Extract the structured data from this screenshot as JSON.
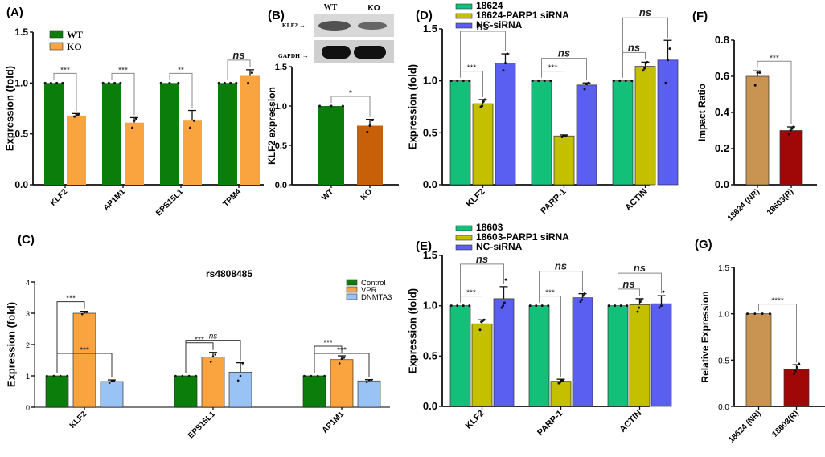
{
  "chart_data": [
    {
      "id": "A",
      "panel_label": "(A)",
      "type": "bar",
      "title": "",
      "xlabel": "",
      "ylabel": "Expression (fold)",
      "ylim": [
        0,
        1.5
      ],
      "yticks": [
        "0.0",
        "0.5",
        "1.0",
        "1.5"
      ],
      "ytick_values": [
        0,
        0.5,
        1.0,
        1.5
      ],
      "categories": [
        "KLF2",
        "AP1M1",
        "EPS15L1",
        "TPM4"
      ],
      "legend": "top-left",
      "series": [
        {
          "name": "WT",
          "color": "#0a7d0a",
          "values": [
            1.0,
            1.0,
            1.0,
            1.0
          ],
          "errors": [
            0,
            0,
            0,
            0
          ],
          "points": [
            [
              1,
              1,
              1,
              1
            ],
            [
              1,
              1,
              1,
              1
            ],
            [
              1,
              1,
              1
            ],
            [
              1,
              1,
              1,
              1
            ]
          ]
        },
        {
          "name": "KO",
          "color": "#f9a43f",
          "values": [
            0.68,
            0.61,
            0.63,
            1.07
          ],
          "errors": [
            0.02,
            0.05,
            0.1,
            0.06
          ],
          "points": [
            [
              0.67,
              0.69,
              0.69
            ],
            [
              0.56,
              0.63,
              0.65
            ],
            [
              0.56,
              0.63
            ],
            [
              1.0,
              1.1
            ]
          ]
        }
      ],
      "significance": [
        {
          "category": 0,
          "from": 0,
          "to": 1,
          "label": "***"
        },
        {
          "category": 1,
          "from": 0,
          "to": 1,
          "label": "***"
        },
        {
          "category": 2,
          "from": 0,
          "to": 1,
          "label": "**"
        },
        {
          "category": 3,
          "from": 0,
          "to": 1,
          "label": "ns"
        }
      ]
    },
    {
      "id": "B",
      "panel_label": "(B)",
      "type": "bar",
      "title": "",
      "xlabel": "",
      "ylabel": "KLF2 expression",
      "ylim": [
        0,
        1.5
      ],
      "yticks": [
        "0.0",
        "0.5",
        "1.0",
        "1.5"
      ],
      "ytick_values": [
        0,
        0.5,
        1.0,
        1.5
      ],
      "categories": [
        "WT",
        "KO"
      ],
      "series": [
        {
          "name": "KLF2 expression",
          "colors": [
            "#0a7d0a",
            "#c8600a"
          ],
          "values": [
            1.0,
            0.75
          ],
          "errors": [
            0,
            0.08
          ],
          "points": [
            [
              1,
              1,
              1
            ],
            [
              0.67,
              0.75,
              0.82
            ]
          ]
        }
      ],
      "significance": [
        {
          "from": 0,
          "to": 1,
          "label": "*"
        }
      ],
      "blot": {
        "lane_labels": [
          "WT",
          "KO"
        ],
        "rows": [
          "KLF2",
          "GAPDH"
        ]
      }
    },
    {
      "id": "C",
      "panel_label": "(C)",
      "type": "bar",
      "title": "rs4808485",
      "xlabel": "",
      "ylabel": "Expression (fold)",
      "ylim": [
        0,
        4
      ],
      "yticks": [
        "0",
        "1",
        "2",
        "3",
        "4"
      ],
      "ytick_values": [
        0,
        1,
        2,
        3,
        4
      ],
      "categories": [
        "KLF2",
        "EPS15L1",
        "AP1M1"
      ],
      "legend": "top-right",
      "series": [
        {
          "name": "Control",
          "color": "#0a7d0a",
          "values": [
            1.0,
            1.0,
            1.0
          ],
          "errors": [
            0,
            0,
            0
          ],
          "points": [
            [
              1,
              1,
              1,
              1
            ],
            [
              1,
              1,
              1,
              1
            ],
            [
              1,
              1,
              1,
              1
            ]
          ]
        },
        {
          "name": "VPR",
          "color": "#f9a43f",
          "values": [
            3.0,
            1.6,
            1.52
          ],
          "errors": [
            0.06,
            0.15,
            0.12
          ],
          "points": [
            [
              2.97,
              3.02,
              3.04
            ],
            [
              1.45,
              1.62,
              1.68
            ],
            [
              1.4,
              1.55,
              1.58
            ]
          ]
        },
        {
          "name": "DNMTA3",
          "color": "#99c2f5",
          "values": [
            0.82,
            1.12,
            0.84
          ],
          "errors": [
            0.05,
            0.3,
            0.04
          ],
          "points": [
            [
              0.78,
              0.84,
              0.84
            ],
            [
              0.85,
              1.0,
              1.4
            ],
            [
              0.8,
              0.86,
              0.87
            ]
          ]
        }
      ],
      "significance": [
        {
          "category": 0,
          "from": 0,
          "to": 1,
          "label": "***"
        },
        {
          "category": 0,
          "from": 0,
          "to": 2,
          "label": "***"
        },
        {
          "category": 1,
          "from": 0,
          "to": 1,
          "label": "***"
        },
        {
          "category": 1,
          "from": 0,
          "to": 2,
          "label": "ns"
        },
        {
          "category": 2,
          "from": 0,
          "to": 1,
          "label": "***"
        },
        {
          "category": 2,
          "from": 0,
          "to": 2,
          "label": "***"
        }
      ]
    },
    {
      "id": "D",
      "panel_label": "(D)",
      "type": "bar",
      "title": "",
      "xlabel": "",
      "ylabel": "Expression (fold)",
      "ylim": [
        0,
        1.5
      ],
      "yticks": [
        "0.0",
        "0.5",
        "1.0",
        "1.5"
      ],
      "ytick_values": [
        0,
        0.5,
        1.0,
        1.5
      ],
      "categories": [
        "KLF2",
        "PARP-1",
        "ACTIN"
      ],
      "legend": "top-left",
      "series": [
        {
          "name": "18624",
          "color": "#12c07a",
          "values": [
            1.0,
            1.0,
            1.0
          ],
          "errors": [
            0,
            0,
            0
          ],
          "points": [
            [
              1,
              1,
              1,
              1
            ],
            [
              1,
              1,
              1,
              1
            ],
            [
              1,
              1,
              1,
              1
            ]
          ]
        },
        {
          "name": "18624-PARP1 siRNA",
          "color": "#c4c000",
          "values": [
            0.78,
            0.47,
            1.14
          ],
          "errors": [
            0.04,
            0.01,
            0.04
          ],
          "points": [
            [
              0.75,
              0.76,
              0.8,
              0.82
            ],
            [
              0.46,
              0.47,
              0.47,
              0.47
            ],
            [
              1.1,
              1.12,
              1.17,
              1.18
            ]
          ]
        },
        {
          "name": "NC-siRNA",
          "color": "#5a5ff2",
          "values": [
            1.17,
            0.96,
            1.2
          ],
          "errors": [
            0.09,
            0.02,
            0.19
          ],
          "points": [
            [
              1.1,
              1.17,
              1.26
            ],
            [
              0.92,
              0.97,
              0.98
            ],
            [
              0.98,
              1.2,
              1.31
            ]
          ]
        }
      ],
      "significance": [
        {
          "category": 0,
          "from": 0,
          "to": 1,
          "label": "***"
        },
        {
          "category": 0,
          "from": 0,
          "to": 2,
          "label": "ns"
        },
        {
          "category": 1,
          "from": 0,
          "to": 1,
          "label": "***"
        },
        {
          "category": 1,
          "from": 0,
          "to": 2,
          "label": "ns"
        },
        {
          "category": 2,
          "from": 0,
          "to": 1,
          "label": "ns"
        },
        {
          "category": 2,
          "from": 0,
          "to": 2,
          "label": "ns"
        }
      ]
    },
    {
      "id": "E",
      "panel_label": "(E)",
      "type": "bar",
      "title": "",
      "xlabel": "",
      "ylabel": "Expression (fold)",
      "ylim": [
        0,
        1.5
      ],
      "yticks": [
        "0.0",
        "0.5",
        "1.0",
        "1.5"
      ],
      "ytick_values": [
        0,
        0.5,
        1.0,
        1.5
      ],
      "categories": [
        "KLF2",
        "PARP-1",
        "ACTIN"
      ],
      "legend": "top-left",
      "series": [
        {
          "name": "18603",
          "color": "#12c07a",
          "values": [
            1.0,
            1.0,
            1.0
          ],
          "errors": [
            0,
            0,
            0
          ],
          "points": [
            [
              1,
              1,
              1,
              1
            ],
            [
              1,
              1,
              1,
              1
            ],
            [
              1,
              1,
              1,
              1
            ]
          ]
        },
        {
          "name": "18603-PARP1 siRNA",
          "color": "#c4c000",
          "values": [
            0.82,
            0.25,
            1.01
          ],
          "errors": [
            0.04,
            0.02,
            0.06
          ],
          "points": [
            [
              0.76,
              0.84,
              0.85,
              0.86
            ],
            [
              0.23,
              0.24,
              0.26,
              0.26
            ],
            [
              0.94,
              0.98,
              1.04,
              1.06
            ]
          ]
        },
        {
          "name": "NC-siRNA",
          "color": "#5a5ff2",
          "values": [
            1.07,
            1.08,
            1.02
          ],
          "errors": [
            0.12,
            0.04,
            0.08
          ],
          "points": [
            [
              0.98,
              1.0,
              1.03,
              1.26
            ],
            [
              1.04,
              1.06,
              1.1,
              1.12
            ],
            [
              0.98,
              1.0,
              1.14
            ]
          ]
        }
      ],
      "significance": [
        {
          "category": 0,
          "from": 0,
          "to": 1,
          "label": "***"
        },
        {
          "category": 0,
          "from": 0,
          "to": 2,
          "label": "ns"
        },
        {
          "category": 1,
          "from": 0,
          "to": 1,
          "label": "***"
        },
        {
          "category": 1,
          "from": 0,
          "to": 2,
          "label": "ns"
        },
        {
          "category": 2,
          "from": 0,
          "to": 1,
          "label": "ns"
        },
        {
          "category": 2,
          "from": 0,
          "to": 2,
          "label": "ns"
        }
      ]
    },
    {
      "id": "F",
      "panel_label": "(F)",
      "type": "bar",
      "title": "",
      "xlabel": "",
      "ylabel": "Impact Ratio",
      "ylim": [
        0,
        0.8
      ],
      "yticks": [
        "0.0",
        "0.2",
        "0.4",
        "0.6",
        "0.8"
      ],
      "ytick_values": [
        0,
        0.2,
        0.4,
        0.6,
        0.8
      ],
      "categories": [
        "18624 (NR)",
        "18603(R)"
      ],
      "series": [
        {
          "name": "Impact Ratio",
          "colors": [
            "#c99352",
            "#a00808"
          ],
          "values": [
            0.6,
            0.3
          ],
          "errors": [
            0.03,
            0.02
          ],
          "points": [
            [
              0.55,
              0.62,
              0.62
            ],
            [
              0.28,
              0.3,
              0.31,
              0.32
            ]
          ]
        }
      ],
      "significance": [
        {
          "from": 0,
          "to": 1,
          "label": "***"
        }
      ]
    },
    {
      "id": "G",
      "panel_label": "(G)",
      "type": "bar",
      "title": "",
      "xlabel": "",
      "ylabel": "Relative Expression",
      "ylim": [
        0,
        1.5
      ],
      "yticks": [
        "0.0",
        "0.5",
        "1.0",
        "1.5"
      ],
      "ytick_values": [
        0,
        0.5,
        1.0,
        1.5
      ],
      "categories": [
        "18624 (NR)",
        "18603(R)"
      ],
      "series": [
        {
          "name": "Relative Expression",
          "colors": [
            "#c99352",
            "#a00808"
          ],
          "values": [
            1.0,
            0.4
          ],
          "errors": [
            0,
            0.05
          ],
          "points": [
            [
              1,
              1,
              1,
              1
            ],
            [
              0.35,
              0.38,
              0.42,
              0.46
            ]
          ]
        }
      ],
      "significance": [
        {
          "from": 0,
          "to": 1,
          "label": "****"
        }
      ]
    }
  ]
}
